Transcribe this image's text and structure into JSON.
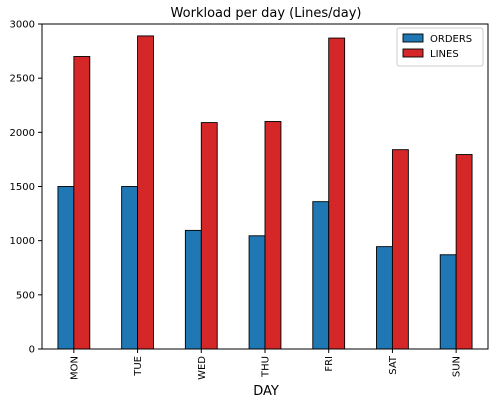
{
  "chart_data": {
    "type": "bar",
    "title": "Workload per day (Lines/day)",
    "xlabel": "DAY",
    "ylabel": "",
    "categories": [
      "MON",
      "TUE",
      "WED",
      "THU",
      "FRI",
      "SAT",
      "SUN"
    ],
    "series": [
      {
        "name": "ORDERS",
        "color": "#1f77b4",
        "values": [
          1500,
          1500,
          1095,
          1045,
          1360,
          945,
          870
        ]
      },
      {
        "name": "LINES",
        "color": "#d62728",
        "values": [
          2700,
          2890,
          2090,
          2100,
          2870,
          1840,
          1795
        ]
      }
    ],
    "ylim": [
      0,
      3000
    ],
    "yticks": [
      0,
      500,
      1000,
      1500,
      2000,
      2500,
      3000
    ],
    "legend": "top-right",
    "grid": false
  }
}
